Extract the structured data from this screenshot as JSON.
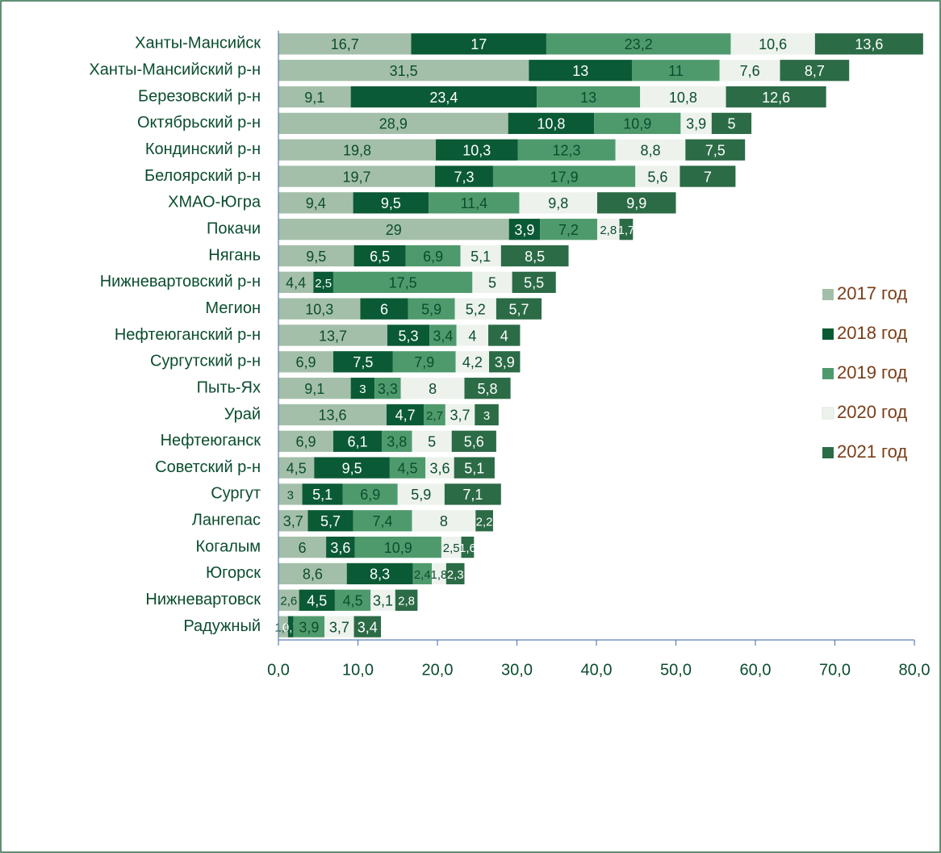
{
  "chart_data": {
    "type": "stacked-bar-horizontal",
    "categories": [
      "Ханты-Мансийск",
      "Ханты-Мансийский р-н",
      "Березовский р-н",
      "Октябрьский р-н",
      "Кондинский р-н",
      "Белоярский р-н",
      "ХМАО-Югра",
      "Покачи",
      "Нягань",
      "Нижневартовский р-н",
      "Мегион",
      "Нефтеюганский р-н",
      "Сургутский р-н",
      "Пыть-Ях",
      "Урай",
      "Нефтеюганск",
      "Советский р-н",
      "Сургут",
      "Лангепас",
      "Когалым",
      "Югорск",
      "Нижневартовск",
      "Радужный"
    ],
    "series": [
      {
        "name": "2017 год",
        "color": "#a4bfa9",
        "values": [
          16.7,
          31.5,
          9.1,
          28.9,
          19.8,
          19.7,
          9.4,
          29,
          9.5,
          4.4,
          10.3,
          13.7,
          6.9,
          9.1,
          13.6,
          6.9,
          4.5,
          3,
          3.7,
          6,
          8.6,
          2.6,
          1.2
        ],
        "value_labels": [
          "16,7",
          "31,5",
          "9,1",
          "28,9",
          "19,8",
          "19,7",
          "9,4",
          "29",
          "9,5",
          "4,4",
          "10,3",
          "13,7",
          "6,9",
          "9,1",
          "13,6",
          "6,9",
          "4,5",
          "3",
          "3,7",
          "6",
          "8,6",
          "2,6",
          "1,2"
        ]
      },
      {
        "name": "2018 год",
        "color": "#0b5a36",
        "values": [
          17,
          13,
          23.4,
          10.8,
          10.3,
          7.3,
          9.5,
          3.9,
          6.5,
          2.5,
          6,
          5.3,
          7.5,
          3,
          4.7,
          6.1,
          9.5,
          5.1,
          5.7,
          3.6,
          8.3,
          4.5,
          0.7
        ],
        "value_labels": [
          "17",
          "13",
          "23,4",
          "10,8",
          "10,3",
          "7,3",
          "9,5",
          "3,9",
          "6,5",
          "2,5",
          "6",
          "5,3",
          "7,5",
          "3",
          "4,7",
          "6,1",
          "9,5",
          "5,1",
          "5,7",
          "3,6",
          "8,3",
          "4,5",
          "0,7"
        ]
      },
      {
        "name": "2019 год",
        "color": "#4f9a6c",
        "values": [
          23.2,
          11,
          13,
          10.9,
          12.3,
          17.9,
          11.4,
          7.2,
          6.9,
          17.5,
          5.9,
          3.4,
          7.9,
          3.3,
          2.7,
          3.8,
          4.5,
          6.9,
          7.4,
          10.9,
          2.4,
          4.5,
          3.9
        ],
        "value_labels": [
          "23,2",
          "11",
          "13",
          "10,9",
          "12,3",
          "17,9",
          "11,4",
          "7,2",
          "6,9",
          "17,5",
          "5,9",
          "3,4",
          "7,9",
          "3,3",
          "2,7",
          "3,8",
          "4,5",
          "6,9",
          "7,4",
          "10,9",
          "2,4",
          "4,5",
          "3,9"
        ]
      },
      {
        "name": "2020 год",
        "color": "#edf2ed",
        "values": [
          10.6,
          7.6,
          10.8,
          3.9,
          8.8,
          5.6,
          9.8,
          2.8,
          5.1,
          5,
          5.2,
          4,
          4.2,
          8,
          3.7,
          5,
          3.6,
          5.9,
          8,
          2.5,
          1.8,
          3.1,
          3.7
        ],
        "value_labels": [
          "10,6",
          "7,6",
          "10,8",
          "3,9",
          "8,8",
          "5,6",
          "9,8",
          "2,8",
          "5,1",
          "5",
          "5,2",
          "4",
          "4,2",
          "8",
          "3,7",
          "5",
          "3,6",
          "5,9",
          "8",
          "2,5",
          "1,8",
          "3,1",
          "3,7"
        ]
      },
      {
        "name": "2021 год",
        "color": "#2b6b46",
        "values": [
          13.6,
          8.7,
          12.6,
          5,
          7.5,
          7,
          9.9,
          1.7,
          8.5,
          5.5,
          5.7,
          4,
          3.9,
          5.8,
          3,
          5.6,
          5.1,
          7.1,
          2.2,
          1.6,
          2.3,
          2.8,
          3.4
        ],
        "value_labels": [
          "13,6",
          "8,7",
          "12,6",
          "5",
          "7,5",
          "7",
          "9,9",
          "1,7",
          "8,5",
          "5,5",
          "5,7",
          "4",
          "3,9",
          "5,8",
          "3",
          "5,6",
          "5,1",
          "7,1",
          "2,2",
          "1,6",
          "2,3",
          "2,8",
          "3,4"
        ]
      }
    ],
    "xlim": [
      0,
      80
    ],
    "xticks": [
      {
        "value": 0,
        "label": "0,0"
      },
      {
        "value": 10,
        "label": "10,0"
      },
      {
        "value": 20,
        "label": "20,0"
      },
      {
        "value": 30,
        "label": "30,0"
      },
      {
        "value": 40,
        "label": "40,0"
      },
      {
        "value": 50,
        "label": "50,0"
      },
      {
        "value": 60,
        "label": "60,0"
      },
      {
        "value": 70,
        "label": "70,0"
      },
      {
        "value": 80,
        "label": "80,0"
      }
    ],
    "legend": "right"
  }
}
